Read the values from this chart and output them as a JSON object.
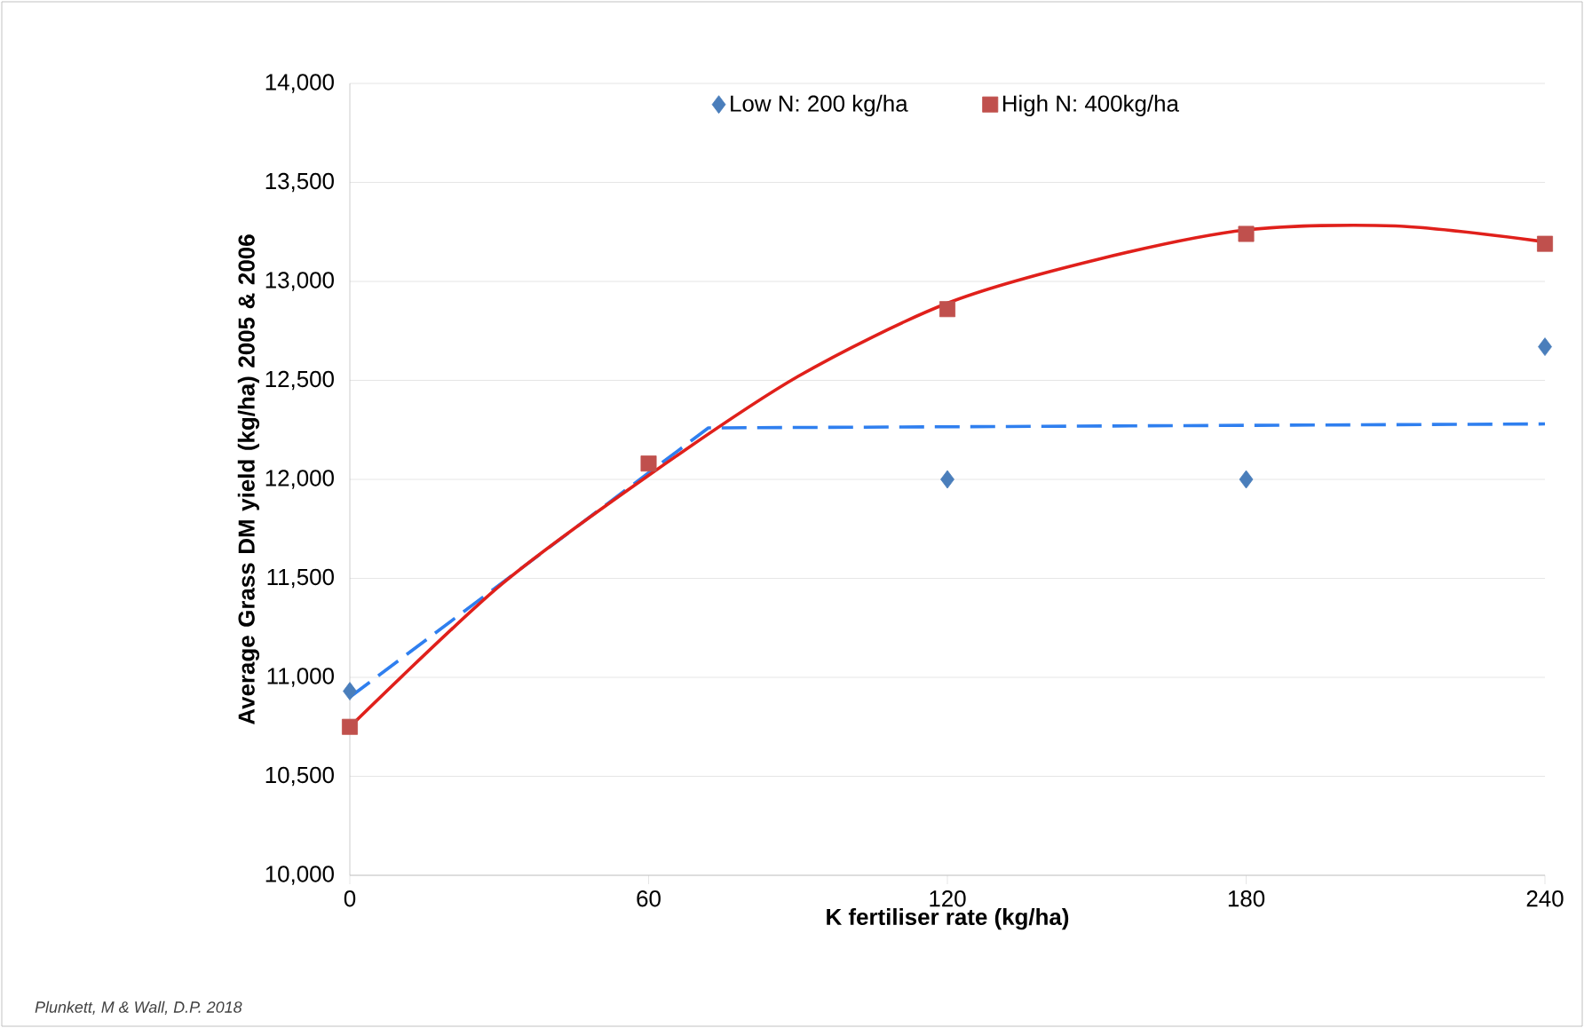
{
  "chart_data": {
    "type": "scatter",
    "xlabel": "K fertiliser rate (kg/ha)",
    "ylabel": "Average Grass DM yield (kg/ha) 2005 & 2006",
    "xlim": [
      0,
      240
    ],
    "ylim": [
      10000,
      14000
    ],
    "xticks": [
      0,
      60,
      120,
      180,
      240
    ],
    "yticks": [
      {
        "value": 10000,
        "label": "10,000"
      },
      {
        "value": 10500,
        "label": "10,500"
      },
      {
        "value": 11000,
        "label": "11,000"
      },
      {
        "value": 11500,
        "label": "11,500"
      },
      {
        "value": 12000,
        "label": "12,000"
      },
      {
        "value": 12500,
        "label": "12,500"
      },
      {
        "value": 13000,
        "label": "13,000"
      },
      {
        "value": 13500,
        "label": "13,500"
      },
      {
        "value": 14000,
        "label": "14,000"
      }
    ],
    "grid": "y",
    "legend": "top",
    "series": [
      {
        "name": "Low N: 200 kg/ha",
        "marker": "diamond",
        "color": "#4a7ebb",
        "x": [
          0,
          60,
          120,
          180,
          240
        ],
        "values": [
          10930,
          null,
          12000,
          12000,
          12670
        ]
      },
      {
        "name": "High N: 400kg/ha",
        "marker": "square",
        "color": "#c0504d",
        "x": [
          0,
          60,
          120,
          180,
          240
        ],
        "values": [
          10750,
          12080,
          12860,
          13240,
          13190
        ]
      },
      {
        "type": "line",
        "line_style": "dashed",
        "color": "#2f7fef",
        "x": [
          0,
          72,
          240
        ],
        "values": [
          10900,
          12260,
          12280
        ]
      },
      {
        "type": "line",
        "line_style": "solid",
        "color": "#e0201b",
        "x": [
          0,
          30,
          60,
          90,
          120,
          150,
          180,
          210,
          240
        ],
        "values": [
          10750,
          11460,
          12020,
          12520,
          12890,
          13110,
          13260,
          13280,
          13200
        ]
      }
    ],
    "annotations": [
      "Plunkett, M & Wall, D.P. 2018"
    ]
  }
}
